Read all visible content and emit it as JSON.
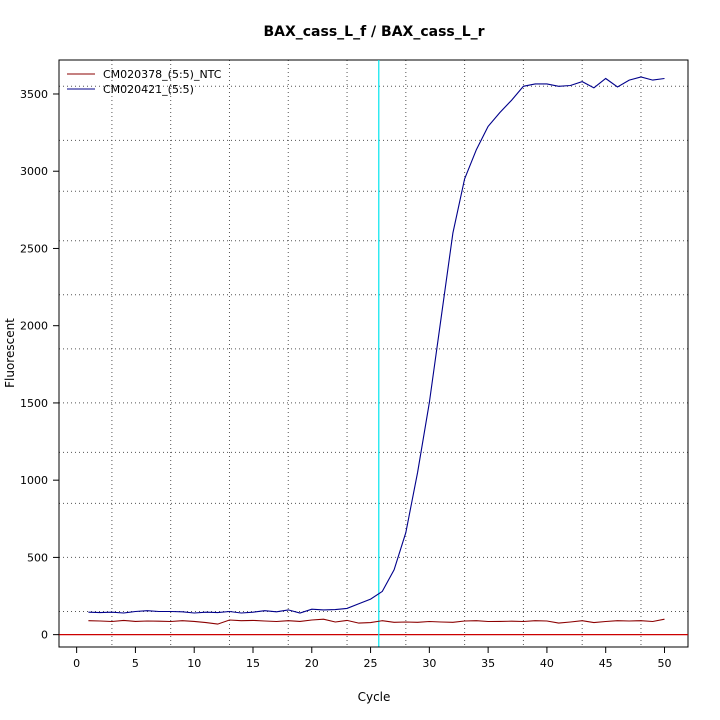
{
  "chart_data": {
    "type": "line",
    "title": "BAX_cass_L_f / BAX_cass_L_r",
    "xlabel": "Cycle",
    "ylabel": "Fluorescent",
    "xlim": [
      -1.5,
      52
    ],
    "ylim": [
      -80,
      3720
    ],
    "xticks": [
      0,
      5,
      10,
      15,
      20,
      25,
      30,
      35,
      40,
      45,
      50
    ],
    "yticks": [
      0,
      500,
      1000,
      1500,
      2000,
      2500,
      3000,
      3500
    ],
    "grid": true,
    "grid_x": [
      3,
      8,
      13,
      18,
      23,
      28,
      33,
      38,
      43,
      48
    ],
    "grid_y": [
      150,
      500,
      850,
      1180,
      1500,
      1850,
      2200,
      2550,
      2870,
      3200,
      3550
    ],
    "legend_position": "top-left",
    "threshold": {
      "x": 25.7,
      "color": "#00e5ee"
    },
    "baseline": {
      "y": 0,
      "color": "#cc0000"
    },
    "x": [
      1,
      2,
      3,
      4,
      5,
      6,
      7,
      8,
      9,
      10,
      11,
      12,
      13,
      14,
      15,
      16,
      17,
      18,
      19,
      20,
      21,
      22,
      23,
      24,
      25,
      26,
      27,
      28,
      29,
      30,
      31,
      32,
      33,
      34,
      35,
      36,
      37,
      38,
      39,
      40,
      41,
      42,
      43,
      44,
      45,
      46,
      47,
      48,
      49,
      50
    ],
    "series": [
      {
        "name": "CM020378_(5:5)_NTC",
        "color": "#8b0000",
        "values": [
          90,
          88,
          85,
          92,
          86,
          88,
          87,
          85,
          90,
          86,
          78,
          68,
          95,
          90,
          92,
          88,
          85,
          90,
          86,
          95,
          100,
          82,
          92,
          75,
          78,
          90,
          80,
          82,
          80,
          85,
          82,
          80,
          88,
          90,
          85,
          86,
          87,
          85,
          90,
          88,
          75,
          82,
          90,
          78,
          85,
          90,
          88,
          90,
          85,
          100
        ]
      },
      {
        "name": "CM020421_(5:5)",
        "color": "#00008b",
        "values": [
          145,
          143,
          145,
          140,
          150,
          155,
          150,
          150,
          148,
          140,
          145,
          143,
          150,
          140,
          145,
          155,
          148,
          160,
          140,
          165,
          160,
          162,
          170,
          200,
          230,
          280,
          420,
          660,
          1050,
          1500,
          2050,
          2600,
          2950,
          3140,
          3290,
          3380,
          3460,
          3550,
          3565,
          3565,
          3550,
          3555,
          3580,
          3540,
          3600,
          3545,
          3590,
          3610,
          3590,
          3600
        ]
      }
    ]
  }
}
